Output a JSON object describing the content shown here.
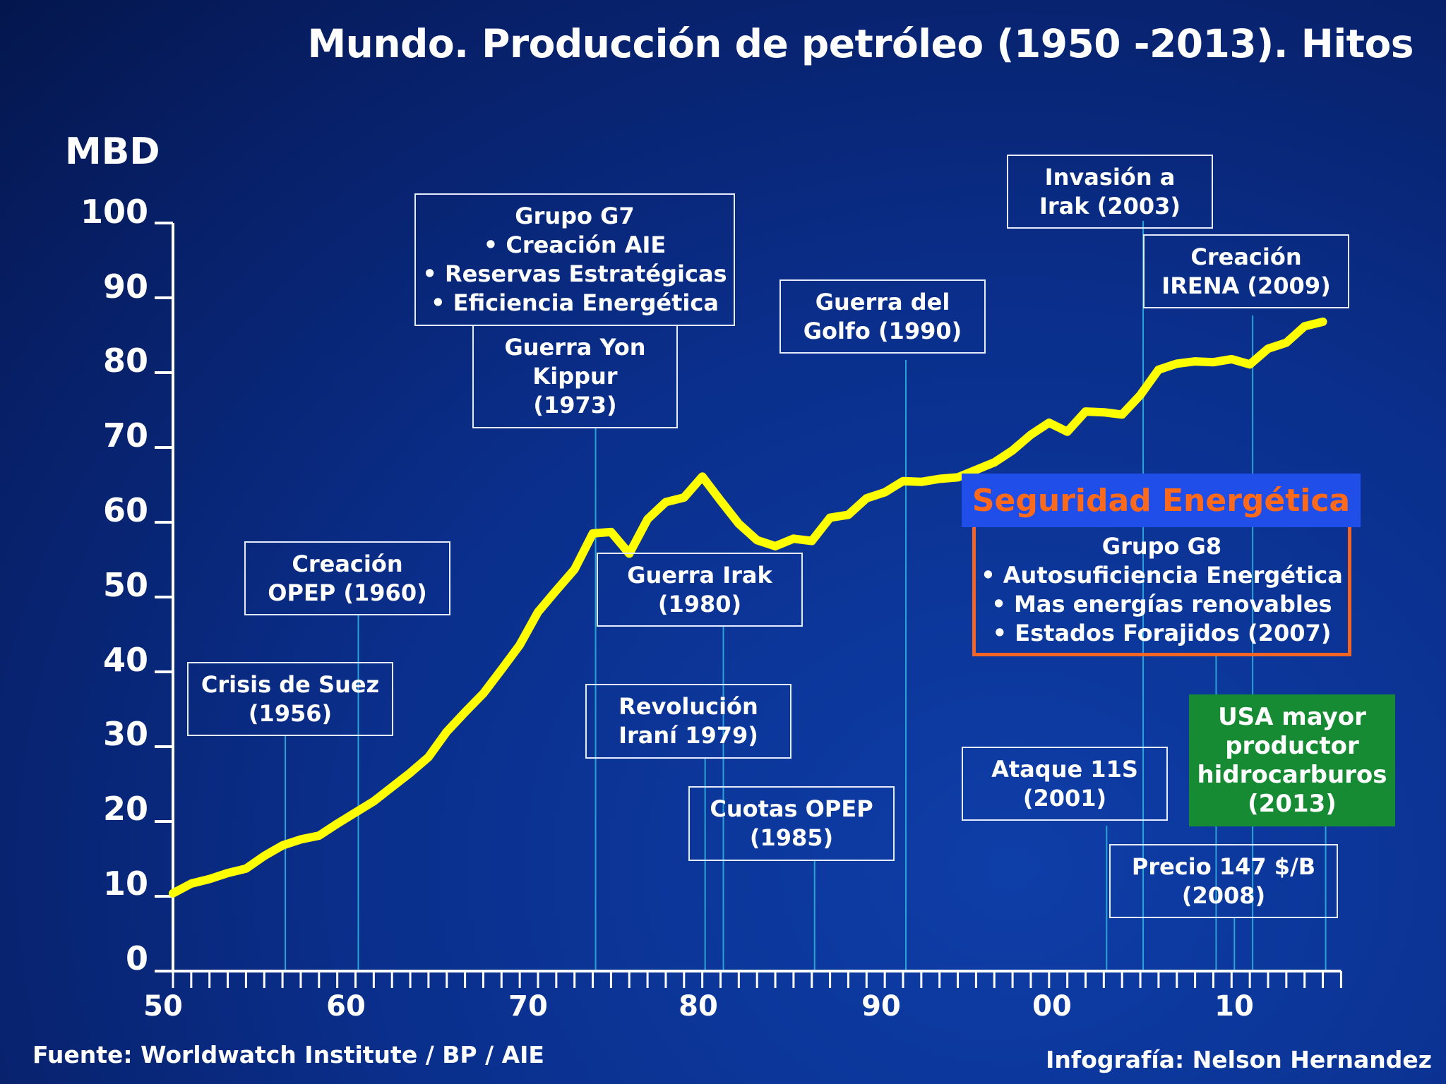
{
  "title": "Mundo. Producción de petróleo (1950 -2013). Hitos",
  "unit_label": "MBD",
  "y_ticks": [
    "100",
    "90",
    "80",
    "70",
    "60",
    "50",
    "40",
    "30",
    "20",
    "10",
    "0"
  ],
  "x_ticks": [
    "50",
    "60",
    "70",
    "80",
    "90",
    "00",
    "10"
  ],
  "colors": {
    "line": "#ffff00",
    "axis": "#ffffff",
    "leader": "#29a3d6",
    "seg_title_bg": "#1f4fe8",
    "seg_title_text": "#ff6a1a",
    "seg_border": "#f26522",
    "usa_bg": "#178a34"
  },
  "chart_data": {
    "type": "line",
    "title": "Mundo. Producción de petróleo (1950 -2013). Hitos",
    "xlabel": "",
    "ylabel": "MBD",
    "xlim": [
      1950,
      2013
    ],
    "ylim": [
      0,
      100
    ],
    "grid": false,
    "series": [
      {
        "name": "Producción de petróleo",
        "x": [
          1950,
          1951,
          1952,
          1953,
          1954,
          1955,
          1956,
          1957,
          1958,
          1959,
          1960,
          1961,
          1962,
          1963,
          1964,
          1965,
          1966,
          1967,
          1968,
          1969,
          1970,
          1971,
          1972,
          1973,
          1974,
          1975,
          1976,
          1977,
          1978,
          1979,
          1980,
          1981,
          1982,
          1983,
          1984,
          1985,
          1986,
          1987,
          1988,
          1989,
          1990,
          1991,
          1992,
          1993,
          1994,
          1995,
          1996,
          1997,
          1998,
          1999,
          2000,
          2001,
          2002,
          2003,
          2004,
          2005,
          2006,
          2007,
          2008,
          2009,
          2010,
          2011,
          2012,
          2013
        ],
        "values": [
          10.4,
          11.7,
          12.3,
          13.1,
          13.7,
          15.4,
          16.8,
          17.6,
          18.1,
          19.7,
          21.2,
          22.7,
          24.6,
          26.5,
          28.6,
          32.0,
          34.6,
          37.1,
          40.3,
          43.6,
          48.0,
          50.9,
          53.7,
          58.5,
          58.7,
          55.8,
          60.4,
          62.7,
          63.3,
          66.1,
          62.9,
          59.8,
          57.6,
          56.8,
          57.8,
          57.5,
          60.6,
          61.0,
          63.2,
          64.0,
          65.5,
          65.4,
          65.8,
          66.0,
          67.0,
          68.0,
          69.6,
          71.7,
          73.3,
          72.1,
          74.8,
          74.7,
          74.4,
          77.0,
          80.4,
          81.2,
          81.5,
          81.4,
          81.8,
          81.1,
          83.2,
          84.0,
          86.2,
          86.8
        ]
      }
    ],
    "annotations": [
      {
        "lines": [
          "Crisis de Suez",
          "(1956)"
        ],
        "year": 1956
      },
      {
        "lines": [
          "Creación",
          "OPEP (1960)"
        ],
        "year": 1960
      },
      {
        "lines": [
          "Grupo G7",
          "• Creación AIE",
          "• Reservas Estratégicas",
          "• Eficiencia Energética"
        ],
        "year": 1974
      },
      {
        "lines": [
          "Guerra Yon",
          "Kippur",
          "(1973)"
        ],
        "year": 1973
      },
      {
        "lines": [
          "Guerra Irak",
          "(1980)"
        ],
        "year": 1980
      },
      {
        "lines": [
          "Revolución",
          "Iraní 1979)"
        ],
        "year": 1979
      },
      {
        "lines": [
          "Cuotas OPEP",
          "(1985)"
        ],
        "year": 1985
      },
      {
        "lines": [
          "Guerra del",
          "Golfo (1990)"
        ],
        "year": 1990
      },
      {
        "lines": [
          "Invasión a",
          "Irak (2003)"
        ],
        "year": 2003
      },
      {
        "lines": [
          "Creación",
          "IRENA (2009)"
        ],
        "year": 2009
      },
      {
        "lines": [
          "Ataque 11S",
          "(2001)"
        ],
        "year": 2001
      },
      {
        "lines": [
          "Precio 147 $/B",
          "(2008)"
        ],
        "year": 2008
      },
      {
        "lines": [
          "USA mayor",
          "productor",
          "hidrocarburos",
          "(2013)"
        ],
        "year": 2013
      },
      {
        "lines": [
          "Grupo G8",
          "• Autosuficiencia Energética",
          "• Mas energías renovables",
          "• Estados Forajidos  (2007)"
        ],
        "year": 2007
      }
    ]
  },
  "seguridad": {
    "title": "Seguridad Energética"
  },
  "footer": {
    "source": "Fuente: Worldwatch Institute  / BP / AIE",
    "credit": "Infografía: Nelson Hernandez"
  }
}
